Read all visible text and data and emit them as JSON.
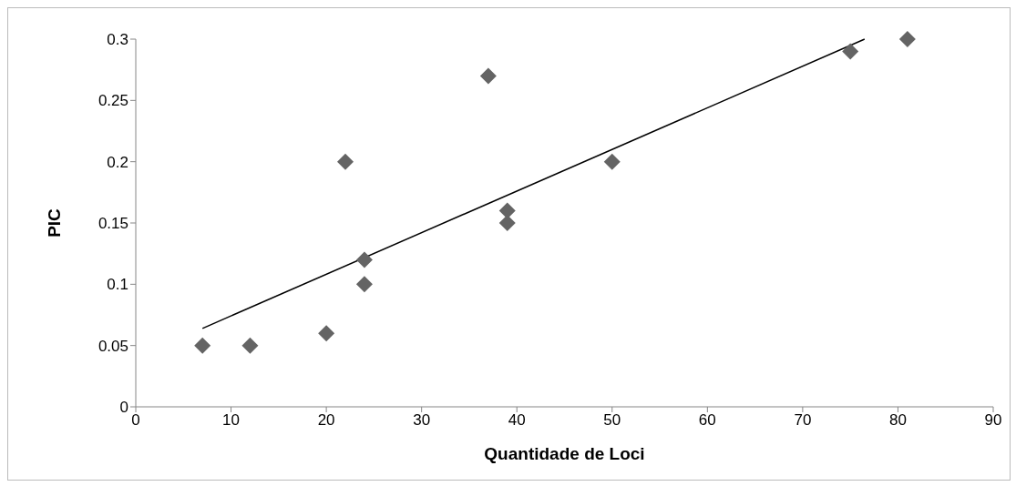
{
  "chart_data": {
    "type": "scatter",
    "xlabel": "Quantidade de Loci",
    "ylabel": "PIC",
    "marker": "diamond",
    "xlim": [
      0,
      90
    ],
    "xticks": [
      0,
      10,
      20,
      30,
      40,
      50,
      60,
      70,
      80,
      90
    ],
    "ylim": [
      0,
      0.3
    ],
    "yticks": [
      0,
      0.05,
      0.1,
      0.15,
      0.2,
      0.25,
      0.3
    ],
    "series": [
      {
        "color": "#646464",
        "x": [
          7,
          12,
          20,
          22,
          24,
          24,
          37,
          39,
          39,
          50,
          75,
          81
        ],
        "values": [
          0.05,
          0.05,
          0.06,
          0.2,
          0.12,
          0.1,
          0.27,
          0.16,
          0.15,
          0.2,
          0.29,
          0.3
        ]
      },
      {
        "type": "line",
        "marker": "none",
        "color": "#000000",
        "x": [
          7,
          76.5
        ],
        "values": [
          0.064,
          0.3
        ]
      }
    ]
  }
}
